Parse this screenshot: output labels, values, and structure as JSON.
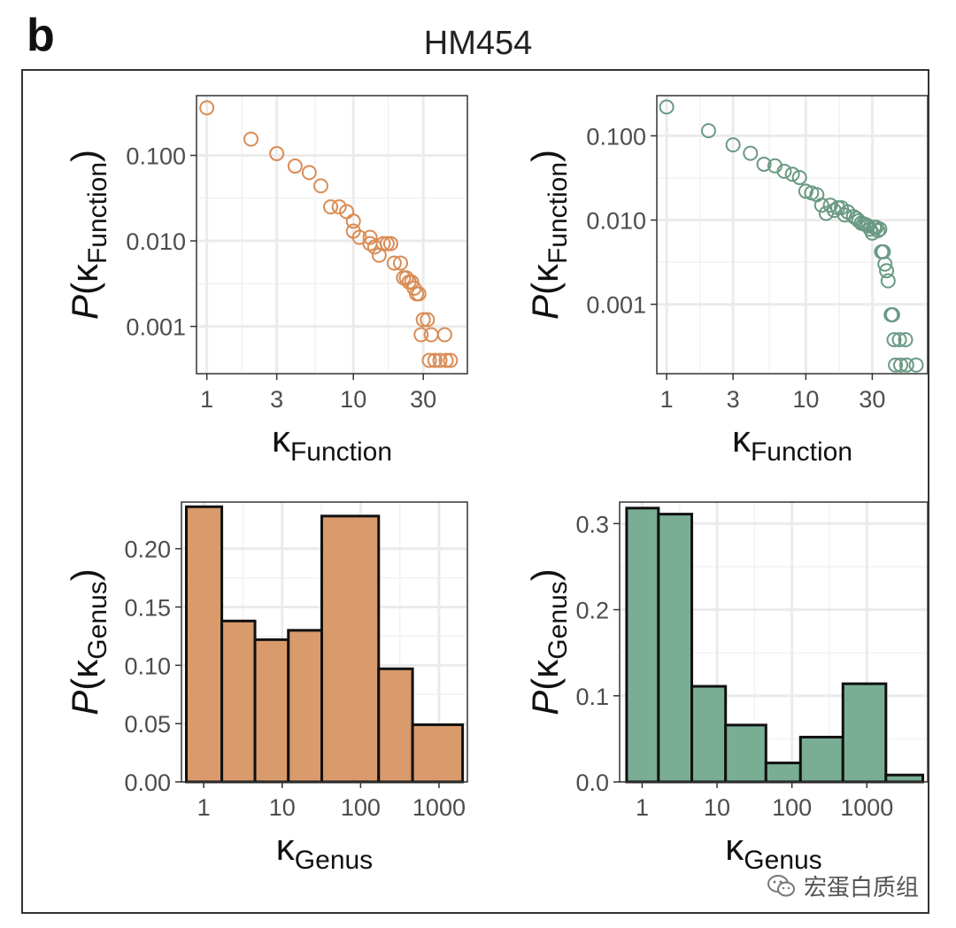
{
  "panel_label": "b",
  "figure_title": "HM454",
  "watermark": {
    "text": "宏蛋白质组",
    "icon": "wechat-icon"
  },
  "colors": {
    "orange": "#d98c55",
    "orange_fill": "#d99a6c",
    "green": "#6a9a84",
    "green_fill": "#79ae95",
    "bar_border": "#111111",
    "grid": "#ebebeb"
  },
  "chart_data": [
    {
      "id": "scatter-left",
      "type": "scatter",
      "scale": "log-log",
      "color": "#d98c55",
      "xlabel": {
        "main": "κ",
        "sub": "Function"
      },
      "ylabel": {
        "main": "P(κ",
        "sub": "Function",
        "close": ")"
      },
      "xlim": [
        0.85,
        60
      ],
      "ylim": [
        0.00028,
        0.5
      ],
      "xticks": [
        1,
        3,
        10,
        30
      ],
      "xtick_labels": [
        "1",
        "3",
        "10",
        "30"
      ],
      "yticks": [
        0.001,
        0.01,
        0.1
      ],
      "ytick_labels": [
        "0.001",
        "0.010",
        "0.100"
      ],
      "points": [
        [
          1,
          0.36
        ],
        [
          2,
          0.155
        ],
        [
          3,
          0.105
        ],
        [
          4,
          0.075
        ],
        [
          5,
          0.063
        ],
        [
          6,
          0.044
        ],
        [
          7,
          0.025
        ],
        [
          8,
          0.025
        ],
        [
          9,
          0.022
        ],
        [
          10,
          0.017
        ],
        [
          10,
          0.013
        ],
        [
          11,
          0.011
        ],
        [
          13,
          0.011
        ],
        [
          13,
          0.0093
        ],
        [
          14,
          0.0085
        ],
        [
          15,
          0.0068
        ],
        [
          16,
          0.0093
        ],
        [
          17,
          0.0093
        ],
        [
          18,
          0.0093
        ],
        [
          19,
          0.0055
        ],
        [
          21,
          0.0055
        ],
        [
          22,
          0.0037
        ],
        [
          23,
          0.0037
        ],
        [
          24,
          0.0033
        ],
        [
          25,
          0.0033
        ],
        [
          26,
          0.0028
        ],
        [
          27,
          0.0024
        ],
        [
          28,
          0.0024
        ],
        [
          30,
          0.0012
        ],
        [
          32,
          0.0012
        ],
        [
          29,
          0.0008
        ],
        [
          34,
          0.0008
        ],
        [
          42,
          0.0008
        ],
        [
          33,
          0.0004
        ],
        [
          36,
          0.0004
        ],
        [
          39,
          0.0004
        ],
        [
          43,
          0.0004
        ],
        [
          46,
          0.0004
        ]
      ]
    },
    {
      "id": "scatter-right",
      "type": "scatter",
      "scale": "log-log",
      "color": "#6a9a84",
      "xlabel": {
        "main": "κ",
        "sub": "Function"
      },
      "ylabel": {
        "main": "P(κ",
        "sub": "Function",
        "close": ")"
      },
      "xlim": [
        0.85,
        75
      ],
      "ylim": [
        0.00015,
        0.3
      ],
      "xticks": [
        1,
        3,
        10,
        30
      ],
      "xtick_labels": [
        "1",
        "3",
        "10",
        "30"
      ],
      "yticks": [
        0.001,
        0.01,
        0.1
      ],
      "ytick_labels": [
        "0.001",
        "0.010",
        "0.100"
      ],
      "points": [
        [
          1,
          0.22
        ],
        [
          2,
          0.115
        ],
        [
          3,
          0.078
        ],
        [
          4,
          0.062
        ],
        [
          5,
          0.046
        ],
        [
          6,
          0.044
        ],
        [
          7,
          0.038
        ],
        [
          8,
          0.035
        ],
        [
          9,
          0.032
        ],
        [
          10,
          0.022
        ],
        [
          11,
          0.021
        ],
        [
          12,
          0.02
        ],
        [
          13,
          0.015
        ],
        [
          14,
          0.012
        ],
        [
          15,
          0.015
        ],
        [
          16,
          0.013
        ],
        [
          17,
          0.014
        ],
        [
          18,
          0.014
        ],
        [
          19,
          0.0115
        ],
        [
          20,
          0.0125
        ],
        [
          22,
          0.011
        ],
        [
          23,
          0.0105
        ],
        [
          24,
          0.0098
        ],
        [
          25,
          0.0092
        ],
        [
          26,
          0.009
        ],
        [
          27,
          0.0088
        ],
        [
          28,
          0.0085
        ],
        [
          29,
          0.0078
        ],
        [
          30,
          0.007
        ],
        [
          31,
          0.0082
        ],
        [
          32,
          0.0082
        ],
        [
          33,
          0.0075
        ],
        [
          34,
          0.0078
        ],
        [
          35,
          0.0042
        ],
        [
          36,
          0.0042
        ],
        [
          37,
          0.003
        ],
        [
          38,
          0.0025
        ],
        [
          39,
          0.0019
        ],
        [
          41,
          0.00075
        ],
        [
          42,
          0.00075
        ],
        [
          43,
          0.00038
        ],
        [
          47,
          0.00038
        ],
        [
          52,
          0.00038
        ],
        [
          44,
          0.00019
        ],
        [
          48,
          0.00019
        ],
        [
          53,
          0.00019
        ],
        [
          62,
          0.00019
        ]
      ]
    },
    {
      "id": "hist-left",
      "type": "bar",
      "scale": "log-x",
      "color": "#d99a6c",
      "xlabel": {
        "main": "κ",
        "sub": "Genus"
      },
      "ylabel": {
        "main": "P(κ",
        "sub": "Genus",
        "close": ")"
      },
      "xlim": [
        0.52,
        2300
      ],
      "ylim": [
        0,
        0.24
      ],
      "xticks": [
        1,
        10,
        100,
        1000
      ],
      "xtick_labels": [
        "1",
        "10",
        "100",
        "1000"
      ],
      "yticks": [
        0,
        0.05,
        0.1,
        0.15,
        0.2
      ],
      "ytick_labels": [
        "0.00",
        "0.05",
        "0.10",
        "0.15",
        "0.20"
      ],
      "bins": [
        {
          "from": 0.6,
          "to": 1.7,
          "value": 0.236
        },
        {
          "from": 1.7,
          "to": 4.5,
          "value": 0.138
        },
        {
          "from": 4.5,
          "to": 12,
          "value": 0.122
        },
        {
          "from": 12,
          "to": 32,
          "value": 0.13
        },
        {
          "from": 32,
          "to": 170,
          "value": 0.228
        },
        {
          "from": 170,
          "to": 460,
          "value": 0.097
        },
        {
          "from": 460,
          "to": 2000,
          "value": 0.049
        }
      ]
    },
    {
      "id": "hist-right",
      "type": "bar",
      "scale": "log-x",
      "color": "#79ae95",
      "xlabel": {
        "main": "κ",
        "sub": "Genus"
      },
      "ylabel": {
        "main": "P(κ",
        "sub": "Genus",
        "close": ")"
      },
      "xlim": [
        0.5,
        6500
      ],
      "ylim": [
        0,
        0.325
      ],
      "xticks": [
        1,
        10,
        100,
        1000
      ],
      "xtick_labels": [
        "1",
        "10",
        "100",
        "1000"
      ],
      "yticks": [
        0,
        0.1,
        0.2,
        0.3
      ],
      "ytick_labels": [
        "0.0",
        "0.1",
        "0.2",
        "0.3"
      ],
      "bins": [
        {
          "from": 0.62,
          "to": 1.65,
          "value": 0.318
        },
        {
          "from": 1.65,
          "to": 4.6,
          "value": 0.311
        },
        {
          "from": 4.6,
          "to": 13,
          "value": 0.111
        },
        {
          "from": 13,
          "to": 45,
          "value": 0.066
        },
        {
          "from": 45,
          "to": 130,
          "value": 0.022
        },
        {
          "from": 130,
          "to": 480,
          "value": 0.052
        },
        {
          "from": 480,
          "to": 1800,
          "value": 0.114
        },
        {
          "from": 1800,
          "to": 5600,
          "value": 0.008
        }
      ]
    }
  ]
}
